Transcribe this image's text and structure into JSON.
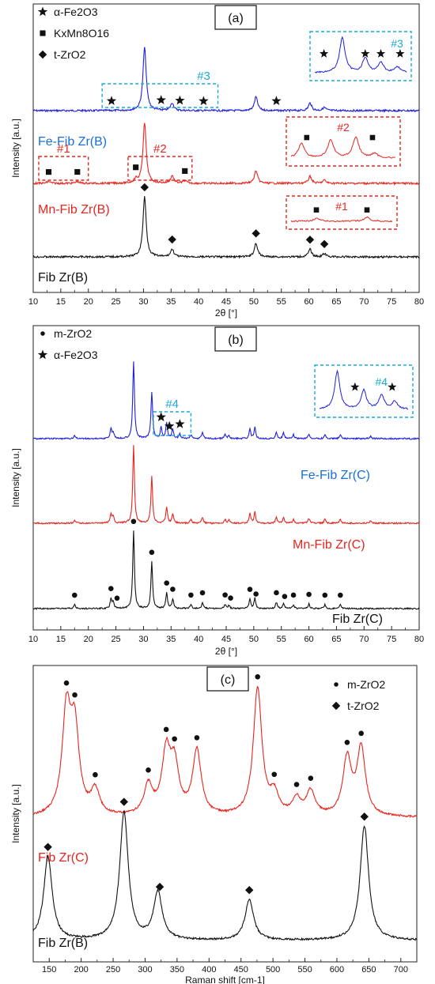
{
  "chart_data": [
    {
      "panel": "(a)",
      "type": "line",
      "xlabel": "2θ [°]",
      "ylabel": "Intensity [a.u.]",
      "xlim": [
        10,
        80
      ],
      "xticks": [
        10,
        15,
        20,
        25,
        30,
        35,
        40,
        45,
        50,
        55,
        60,
        65,
        70,
        75,
        80
      ],
      "legend": [
        {
          "label": "α-Fe2O3",
          "marker": "star"
        },
        {
          "label": "KxMn8O16",
          "marker": "square"
        },
        {
          "label": "t-ZrO2",
          "marker": "diamond"
        }
      ],
      "series": [
        {
          "name": "Fe-Fib Zr(B)",
          "color": "#1f1fdc",
          "baseline": 0.0,
          "peaks": [
            [
              30.2,
              1.0
            ],
            [
              35.2,
              0.12
            ],
            [
              50.4,
              0.22
            ],
            [
              60.2,
              0.12
            ],
            [
              62.8,
              0.05
            ]
          ],
          "markers": [
            {
              "x": 24.2,
              "m": "star"
            },
            {
              "x": 33.2,
              "m": "star"
            },
            {
              "x": 36.6,
              "m": "star"
            },
            {
              "x": 40.9,
              "m": "star"
            },
            {
              "x": 54.1,
              "m": "star"
            }
          ],
          "roi": {
            "label": "#3",
            "x0": 22.5,
            "x1": 43.5
          }
        },
        {
          "name": "Mn-Fib Zr(B)",
          "color": "#e8251f",
          "baseline": 0.0,
          "peaks": [
            [
              12.8,
              0.03
            ],
            [
              18.0,
              0.03
            ],
            [
              28.6,
              0.06
            ],
            [
              30.2,
              0.95
            ],
            [
              35.2,
              0.12
            ],
            [
              37.5,
              0.04
            ],
            [
              50.4,
              0.2
            ],
            [
              60.2,
              0.11
            ],
            [
              62.8,
              0.05
            ]
          ],
          "markers": [
            {
              "x": 12.8,
              "m": "square"
            },
            {
              "x": 18.0,
              "m": "square"
            },
            {
              "x": 28.6,
              "m": "square"
            },
            {
              "x": 37.5,
              "m": "square"
            }
          ],
          "roi": [
            {
              "label": "#1",
              "x0": 11.0,
              "x1": 20.0
            },
            {
              "label": "#2",
              "x0": 27.2,
              "x1": 38.8
            }
          ]
        },
        {
          "name": "Fib Zr(B)",
          "color": "#111111",
          "baseline": 0.0,
          "peaks": [
            [
              30.2,
              0.95
            ],
            [
              35.2,
              0.12
            ],
            [
              50.4,
              0.22
            ],
            [
              60.2,
              0.12
            ],
            [
              62.8,
              0.05
            ]
          ],
          "markers": [
            {
              "x": 30.2,
              "m": "diamond"
            },
            {
              "x": 35.2,
              "m": "diamond"
            },
            {
              "x": 50.4,
              "m": "diamond"
            },
            {
              "x": 60.2,
              "m": "diamond"
            },
            {
              "x": 62.8,
              "m": "diamond"
            }
          ]
        }
      ],
      "insets": [
        {
          "label": "#3",
          "color": "#1f1fdc",
          "markers": [
            "star",
            "star",
            "star",
            "star"
          ]
        },
        {
          "label": "#2",
          "color": "#e8251f",
          "markers": [
            "square",
            "square"
          ]
        },
        {
          "label": "#1",
          "color": "#e8251f",
          "markers": [
            "square",
            "square"
          ]
        }
      ]
    },
    {
      "panel": "(b)",
      "type": "line",
      "xlabel": "2θ [°]",
      "ylabel": "Intensity [a.u.]",
      "xlim": [
        10,
        80
      ],
      "xticks": [
        10,
        15,
        20,
        25,
        30,
        35,
        40,
        45,
        50,
        55,
        60,
        65,
        70,
        75,
        80
      ],
      "legend": [
        {
          "label": "m-ZrO2",
          "marker": "circle"
        },
        {
          "label": "α-Fe2O3",
          "marker": "star"
        }
      ],
      "series": [
        {
          "name": "Fe-Fib Zr(C)",
          "color": "#1f1fdc",
          "peaks": [
            [
              17.5,
              0.04
            ],
            [
              24.1,
              0.12
            ],
            [
              24.5,
              0.08
            ],
            [
              28.2,
              1.0
            ],
            [
              31.5,
              0.6
            ],
            [
              33.2,
              0.14
            ],
            [
              34.2,
              0.2
            ],
            [
              35.3,
              0.12
            ],
            [
              36.6,
              0.06
            ],
            [
              38.6,
              0.05
            ],
            [
              40.7,
              0.08
            ],
            [
              44.8,
              0.05
            ],
            [
              45.5,
              0.04
            ],
            [
              49.3,
              0.12
            ],
            [
              50.2,
              0.14
            ],
            [
              54.1,
              0.08
            ],
            [
              55.4,
              0.07
            ],
            [
              57.2,
              0.05
            ],
            [
              60.0,
              0.06
            ],
            [
              62.9,
              0.05
            ],
            [
              65.7,
              0.05
            ],
            [
              71.2,
              0.03
            ]
          ],
          "markers": [
            {
              "x": 33.2,
              "m": "star"
            },
            {
              "x": 34.7,
              "m": "star"
            },
            {
              "x": 36.6,
              "m": "star"
            }
          ],
          "roi": {
            "label": "#4",
            "x0": 31.8,
            "x1": 38.6
          }
        },
        {
          "name": "Mn-Fib Zr(C)",
          "color": "#e8251f",
          "peaks": [
            [
              17.5,
              0.04
            ],
            [
              24.1,
              0.12
            ],
            [
              24.5,
              0.08
            ],
            [
              28.2,
              1.0
            ],
            [
              31.5,
              0.6
            ],
            [
              34.2,
              0.2
            ],
            [
              35.3,
              0.12
            ],
            [
              38.6,
              0.05
            ],
            [
              40.7,
              0.08
            ],
            [
              44.8,
              0.05
            ],
            [
              45.5,
              0.04
            ],
            [
              49.3,
              0.12
            ],
            [
              50.2,
              0.14
            ],
            [
              54.1,
              0.08
            ],
            [
              55.4,
              0.07
            ],
            [
              57.2,
              0.05
            ],
            [
              60.0,
              0.06
            ],
            [
              62.9,
              0.05
            ],
            [
              65.7,
              0.05
            ],
            [
              71.2,
              0.03
            ]
          ]
        },
        {
          "name": "Fib Zr(C)",
          "color": "#111111",
          "peaks": [
            [
              17.5,
              0.05
            ],
            [
              24.1,
              0.12
            ],
            [
              24.5,
              0.08
            ],
            [
              28.2,
              1.0
            ],
            [
              31.5,
              0.6
            ],
            [
              34.2,
              0.2
            ],
            [
              35.3,
              0.12
            ],
            [
              38.6,
              0.05
            ],
            [
              40.7,
              0.08
            ],
            [
              44.8,
              0.05
            ],
            [
              45.5,
              0.04
            ],
            [
              49.3,
              0.12
            ],
            [
              50.2,
              0.14
            ],
            [
              54.1,
              0.08
            ],
            [
              55.4,
              0.07
            ],
            [
              57.2,
              0.05
            ],
            [
              60.0,
              0.06
            ],
            [
              62.9,
              0.05
            ],
            [
              65.7,
              0.05
            ]
          ],
          "markers": [
            {
              "x": 17.5,
              "m": "circle"
            },
            {
              "x": 24.1,
              "m": "circle"
            },
            {
              "x": 25.2,
              "m": "circle"
            },
            {
              "x": 28.2,
              "m": "circle"
            },
            {
              "x": 31.5,
              "m": "circle"
            },
            {
              "x": 34.2,
              "m": "circle"
            },
            {
              "x": 35.3,
              "m": "circle"
            },
            {
              "x": 38.6,
              "m": "circle"
            },
            {
              "x": 40.7,
              "m": "circle"
            },
            {
              "x": 44.8,
              "m": "circle"
            },
            {
              "x": 45.8,
              "m": "circle"
            },
            {
              "x": 49.3,
              "m": "circle"
            },
            {
              "x": 50.4,
              "m": "circle"
            },
            {
              "x": 54.1,
              "m": "circle"
            },
            {
              "x": 55.6,
              "m": "circle"
            },
            {
              "x": 57.2,
              "m": "circle"
            },
            {
              "x": 60.0,
              "m": "circle"
            },
            {
              "x": 62.9,
              "m": "circle"
            },
            {
              "x": 65.7,
              "m": "circle"
            }
          ]
        }
      ],
      "insets": [
        {
          "label": "#4",
          "color": "#1f1fdc",
          "markers": [
            "star",
            "star"
          ]
        }
      ]
    },
    {
      "panel": "(c)",
      "type": "line",
      "xlabel": "Raman shift [cm-1]",
      "ylabel": "Intensity [a.u.]",
      "xlim": [
        125,
        725
      ],
      "xticks": [
        150,
        200,
        250,
        300,
        350,
        400,
        450,
        500,
        550,
        600,
        650,
        700
      ],
      "legend": [
        {
          "label": "m-ZrO2",
          "marker": "circle"
        },
        {
          "label": "t-ZrO2",
          "marker": "diamond"
        }
      ],
      "series": [
        {
          "name": "Fib Zr(C)",
          "color": "#e8251f",
          "peaks": [
            [
              177,
              0.75
            ],
            [
              190,
              0.62
            ],
            [
              222,
              0.18
            ],
            [
              305,
              0.22
            ],
            [
              333,
              0.45
            ],
            [
              346,
              0.35
            ],
            [
              381,
              0.48
            ],
            [
              476,
              0.95
            ],
            [
              502,
              0.15
            ],
            [
              537,
              0.12
            ],
            [
              559,
              0.18
            ],
            [
              616,
              0.42
            ],
            [
              638,
              0.5
            ]
          ],
          "markers": [
            {
              "x": 177,
              "m": "circle"
            },
            {
              "x": 190,
              "m": "circle"
            },
            {
              "x": 222,
              "m": "circle"
            },
            {
              "x": 305,
              "m": "circle"
            },
            {
              "x": 333,
              "m": "circle"
            },
            {
              "x": 346,
              "m": "circle"
            },
            {
              "x": 381,
              "m": "circle"
            },
            {
              "x": 476,
              "m": "circle"
            },
            {
              "x": 502,
              "m": "circle"
            },
            {
              "x": 537,
              "m": "circle"
            },
            {
              "x": 559,
              "m": "circle"
            },
            {
              "x": 616,
              "m": "circle"
            },
            {
              "x": 638,
              "m": "circle"
            }
          ]
        },
        {
          "name": "Fib Zr(B)",
          "color": "#111111",
          "peaks": [
            [
              148,
              0.62
            ],
            [
              267,
              0.95
            ],
            [
              320,
              0.35
            ],
            [
              463,
              0.3
            ],
            [
              643,
              0.85
            ]
          ],
          "markers": [
            {
              "x": 148,
              "m": "diamond"
            },
            {
              "x": 267,
              "m": "diamond"
            },
            {
              "x": 323,
              "m": "diamond"
            },
            {
              "x": 463,
              "m": "diamond"
            },
            {
              "x": 643,
              "m": "diamond"
            }
          ]
        }
      ]
    }
  ]
}
